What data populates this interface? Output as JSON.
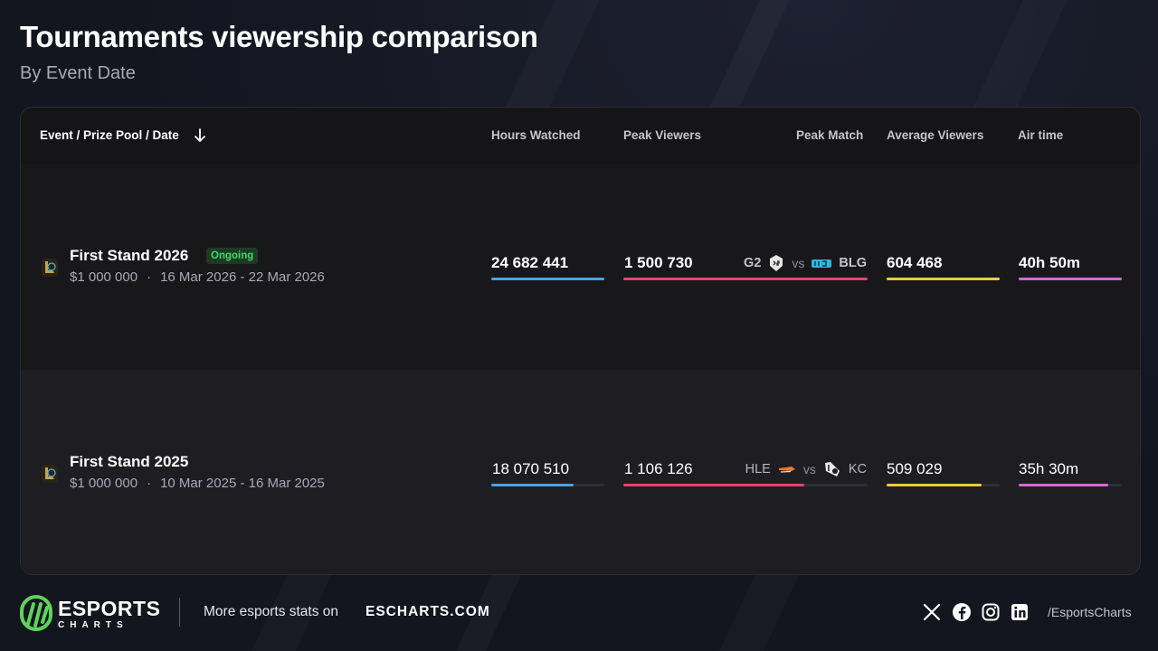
{
  "page": {
    "title": "Tournaments viewership comparison",
    "subtitle": "By Event Date"
  },
  "colors": {
    "hours_bar": "#4aa3e8",
    "peak_bar": "#e2466f",
    "avg_bar": "#f0c93c",
    "air_bar": "#d66ad9",
    "ongoing_badge_text": "#45d86a",
    "ongoing_badge_bg": "#1d3a24"
  },
  "table": {
    "columns": {
      "event": "Event / Prize Pool / Date",
      "hours_watched": "Hours Watched",
      "peak_viewers": "Peak Viewers",
      "peak_match": "Peak Match",
      "average_viewers": "Average Viewers",
      "air_time": "Air time"
    },
    "sort_icon": "arrow-down-icon",
    "rows": [
      {
        "game_icon": "league-of-legends-icon",
        "name": "First Stand 2026",
        "badge": "Ongoing",
        "prize_pool": "$1 000 000",
        "dot": "·",
        "dates": "16 Mar 2026 - 22 Mar 2026",
        "hours_watched": "24 682 441",
        "hours_fraction": 1.0,
        "peak_viewers": "1 500 730",
        "peak_fraction": 1.0,
        "team1": "G2",
        "team1_logo": "g2-esports-logo-icon",
        "vs": "vs",
        "team2": "BLG",
        "team2_logo": "bilibili-gaming-logo-icon",
        "average_viewers": "604 468",
        "avg_fraction": 1.0,
        "air_time": "40h 50m",
        "air_fraction": 1.0
      },
      {
        "game_icon": "league-of-legends-icon",
        "name": "First Stand 2025",
        "badge": "",
        "prize_pool": "$1 000 000",
        "dot": "·",
        "dates": "10 Mar 2025 - 16 Mar 2025",
        "hours_watched": "18 070 510",
        "hours_fraction": 0.73,
        "peak_viewers": "1 106 126",
        "peak_fraction": 0.74,
        "team1": "HLE",
        "team1_logo": "hanwha-life-logo-icon",
        "vs": "vs",
        "team2": "KC",
        "team2_logo": "karmine-corp-logo-icon",
        "average_viewers": "509 029",
        "avg_fraction": 0.84,
        "air_time": "35h 30m",
        "air_fraction": 0.87
      }
    ]
  },
  "footer": {
    "brand": "ESPORTS",
    "brand_sub": "CHARTS",
    "promo_text": "More esports stats on",
    "promo_link": "ESCHARTS.COM",
    "social_icons": [
      "x-icon",
      "facebook-icon",
      "instagram-icon",
      "linkedin-icon"
    ],
    "handle": "/EsportsCharts"
  }
}
